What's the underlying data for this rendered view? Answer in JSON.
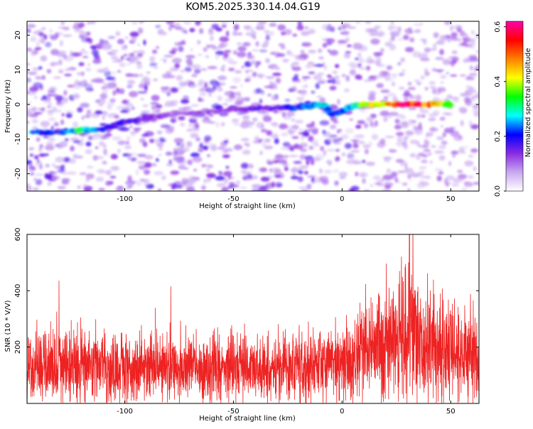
{
  "title": "KOM5.2025.330.14.04.G19",
  "colors": {
    "line": "#ee2222",
    "axis": "#000000",
    "colorbar_stops": [
      "#ffffff",
      "#c8a8f0",
      "#8a2be2",
      "#0000ff",
      "#00ffff",
      "#00ff00",
      "#ffff00",
      "#ff8000",
      "#ff0000",
      "#ff00aa"
    ]
  },
  "chart_data": [
    {
      "type": "heatmap",
      "name": "spectrogram",
      "xlabel": "Height of straight line (km)",
      "ylabel": "Frequency (Hz)",
      "xlim": [
        -145,
        63
      ],
      "ylim": [
        -25,
        24
      ],
      "x_ticks": [
        -100,
        -50,
        0,
        50
      ],
      "x_tick_labels": [
        "-100",
        "-50",
        "0",
        "50"
      ],
      "y_ticks": [
        -20,
        -10,
        0,
        10,
        20
      ],
      "y_tick_labels": [
        "-20",
        "-10",
        "0",
        "10",
        "20"
      ],
      "colorbar": {
        "label": "Normalized spectral amplitude",
        "range": [
          0.0,
          0.62
        ],
        "ticks": [
          0.0,
          0.2,
          0.4,
          0.6
        ],
        "tick_labels": [
          "0.0",
          "0.2",
          "0.4",
          "0.6"
        ]
      },
      "ridge": {
        "description": "dominant frequency track",
        "x": [
          -143,
          -130,
          -120,
          -110,
          -100,
          -90,
          -80,
          -60,
          -40,
          -25,
          -15,
          -8,
          -5,
          0,
          5,
          10,
          20,
          30,
          40,
          50
        ],
        "y": [
          -8,
          -8,
          -7.5,
          -7,
          -5,
          -4,
          -3,
          -2,
          -1,
          -1,
          -0.5,
          0,
          -3,
          -2,
          -0.5,
          0,
          0,
          0,
          0,
          0
        ],
        "amplitude": [
          0.25,
          0.2,
          0.35,
          0.2,
          0.18,
          0.15,
          0.12,
          0.12,
          0.15,
          0.2,
          0.25,
          0.3,
          0.2,
          0.25,
          0.3,
          0.4,
          0.5,
          0.6,
          0.55,
          0.4
        ]
      }
    },
    {
      "type": "line",
      "name": "snr",
      "xlabel": "Height of straight line (km)",
      "ylabel": "SNR (10 * V/V)",
      "xlim": [
        -145,
        63
      ],
      "ylim": [
        0,
        600
      ],
      "x_ticks": [
        -100,
        -50,
        0,
        50
      ],
      "x_tick_labels": [
        "-100",
        "-50",
        "0",
        "50"
      ],
      "y_ticks": [
        200,
        400,
        600
      ],
      "y_tick_labels": [
        "200",
        "400",
        "600"
      ],
      "series_description": "noisy SNR series, baseline ~120-150 for x<0, rising to ~250 between 20 and 40 km with peak ~600 near 31 km",
      "envelope_x": [
        -145,
        -120,
        -100,
        -80,
        -60,
        -40,
        -20,
        0,
        10,
        20,
        25,
        30,
        35,
        40,
        50,
        63
      ],
      "envelope_mean": [
        130,
        135,
        125,
        130,
        125,
        130,
        130,
        140,
        160,
        190,
        230,
        260,
        240,
        210,
        190,
        170
      ],
      "peak": {
        "x": 31,
        "y": 600
      }
    }
  ]
}
